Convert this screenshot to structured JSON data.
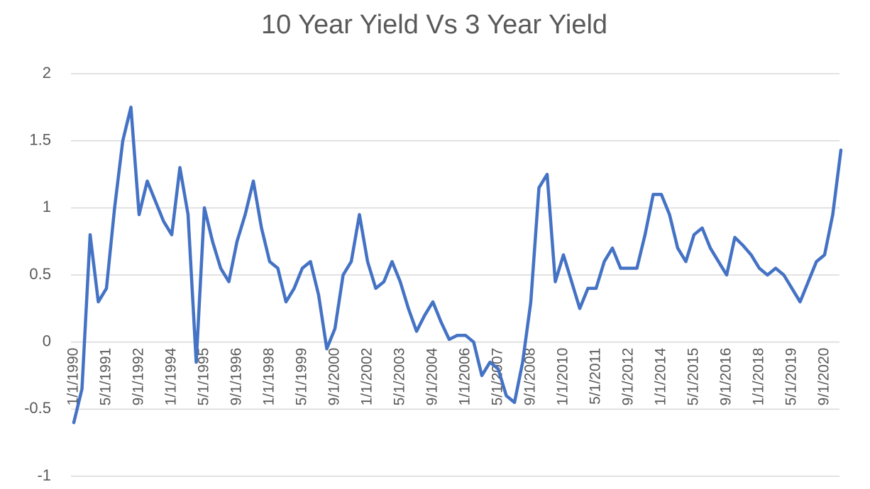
{
  "chart_data": {
    "type": "line",
    "title": "10 Year Yield Vs 3 Year Yield",
    "categories": [
      "1/1/1990",
      null,
      null,
      null,
      "5/1/1991",
      null,
      null,
      null,
      "9/1/1992",
      null,
      null,
      null,
      "1/1/1994",
      null,
      null,
      null,
      "5/1/1995",
      null,
      null,
      null,
      "9/1/1996",
      null,
      null,
      null,
      "1/1/1998",
      null,
      null,
      null,
      "5/1/1999",
      null,
      null,
      null,
      "9/1/2000",
      null,
      null,
      null,
      "1/1/2002",
      null,
      null,
      null,
      "5/1/2003",
      null,
      null,
      null,
      "9/1/2004",
      null,
      null,
      null,
      "1/1/2006",
      null,
      null,
      null,
      "5/1/2007",
      null,
      null,
      null,
      "9/1/2008",
      null,
      null,
      null,
      "1/1/2010",
      null,
      null,
      null,
      "5/1/2011",
      null,
      null,
      null,
      "9/1/2012",
      null,
      null,
      null,
      "1/1/2014",
      null,
      null,
      null,
      "5/1/2015",
      null,
      null,
      null,
      "9/1/2016",
      null,
      null,
      null,
      "1/1/2018",
      null,
      null,
      null,
      "5/1/2019",
      null,
      null,
      null,
      "9/1/2020",
      null,
      null
    ],
    "series": [
      {
        "name": "10 Year Yield Vs 3 Year Yield",
        "color": "#4472c4",
        "values": [
          -0.6,
          -0.35,
          0.8,
          0.3,
          0.4,
          1.0,
          1.5,
          1.75,
          0.95,
          1.2,
          1.05,
          0.9,
          0.8,
          1.3,
          0.95,
          -0.15,
          1.0,
          0.75,
          0.55,
          0.45,
          0.75,
          0.95,
          1.2,
          0.85,
          0.6,
          0.55,
          0.3,
          0.4,
          0.55,
          0.6,
          0.35,
          -0.05,
          0.1,
          0.5,
          0.6,
          0.95,
          0.6,
          0.4,
          0.45,
          0.6,
          0.45,
          0.25,
          0.08,
          0.2,
          0.3,
          0.15,
          0.02,
          0.05,
          0.05,
          0.0,
          -0.25,
          -0.15,
          -0.2,
          -0.4,
          -0.45,
          -0.15,
          0.3,
          1.15,
          1.25,
          0.45,
          0.65,
          0.45,
          0.25,
          0.4,
          0.4,
          0.6,
          0.7,
          0.55,
          0.55,
          0.55,
          0.8,
          1.1,
          1.1,
          0.95,
          0.7,
          0.6,
          0.8,
          0.85,
          0.7,
          0.6,
          0.5,
          0.78,
          0.72,
          0.65,
          0.55,
          0.5,
          0.55,
          0.5,
          0.4,
          0.3,
          0.45,
          0.6,
          0.65,
          0.95,
          1.43
        ]
      }
    ],
    "ylim": [
      -1,
      2
    ],
    "yticks": [
      -1,
      -0.5,
      0,
      0.5,
      1,
      1.5,
      2
    ],
    "grid": true
  }
}
